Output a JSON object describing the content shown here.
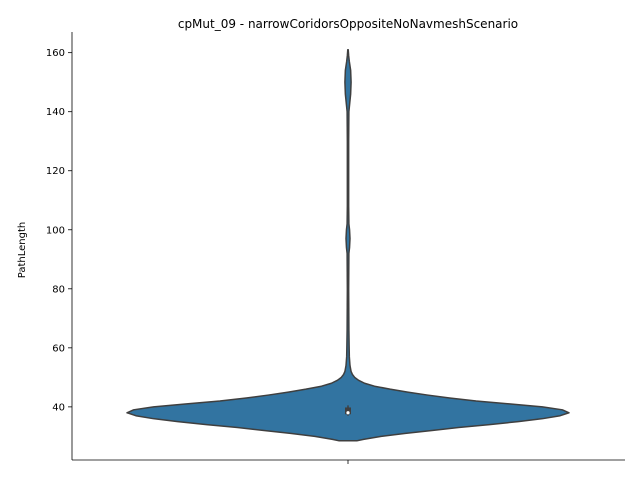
{
  "chart_data": {
    "type": "violin",
    "title": "cpMut_09 - narrowCoridorsOppositeNoNavmeshScenario",
    "xlabel": "",
    "ylabel": "PathLength",
    "ylim": [
      22,
      167
    ],
    "yticks": [
      40,
      60,
      80,
      100,
      120,
      140,
      160
    ],
    "grid": false,
    "legend": "none",
    "colors": {
      "fill": "#3274a1",
      "edge": "#3f3f3f",
      "box": "#3f3f3f",
      "median": "#ffffff"
    },
    "series": [
      {
        "box": {
          "q1": 37.5,
          "median": 38.0,
          "q3": 39.8,
          "whisker_low": 37.0,
          "whisker_high": 40.5
        },
        "density_profile": [
          [
            28.5,
            0.04
          ],
          [
            29.0,
            0.07
          ],
          [
            30.0,
            0.15
          ],
          [
            31.0,
            0.26
          ],
          [
            32.0,
            0.38
          ],
          [
            33.0,
            0.5
          ],
          [
            34.0,
            0.64
          ],
          [
            35.0,
            0.77
          ],
          [
            36.0,
            0.88
          ],
          [
            37.0,
            0.96
          ],
          [
            38.0,
            1.0
          ],
          [
            39.0,
            0.97
          ],
          [
            40.0,
            0.88
          ],
          [
            41.0,
            0.73
          ],
          [
            42.0,
            0.58
          ],
          [
            43.0,
            0.46
          ],
          [
            44.0,
            0.36
          ],
          [
            45.0,
            0.27
          ],
          [
            46.0,
            0.19
          ],
          [
            47.0,
            0.12
          ],
          [
            48.0,
            0.075
          ],
          [
            49.0,
            0.048
          ],
          [
            50.0,
            0.03
          ],
          [
            51.0,
            0.02
          ],
          [
            52.0,
            0.014
          ],
          [
            54.0,
            0.009
          ],
          [
            57.0,
            0.006
          ],
          [
            61.0,
            0.005
          ],
          [
            66.0,
            0.004
          ],
          [
            80.0,
            0.003
          ],
          [
            92.0,
            0.004
          ],
          [
            94.0,
            0.007
          ],
          [
            97.0,
            0.009
          ],
          [
            100.0,
            0.007
          ],
          [
            102.0,
            0.004
          ],
          [
            108.0,
            0.003
          ],
          [
            130.0,
            0.003
          ],
          [
            140.0,
            0.004
          ],
          [
            143.0,
            0.008
          ],
          [
            146.0,
            0.012
          ],
          [
            150.0,
            0.014
          ],
          [
            154.0,
            0.012
          ],
          [
            157.0,
            0.006
          ],
          [
            159.0,
            0.003
          ],
          [
            161.0,
            0.001
          ]
        ]
      }
    ]
  }
}
